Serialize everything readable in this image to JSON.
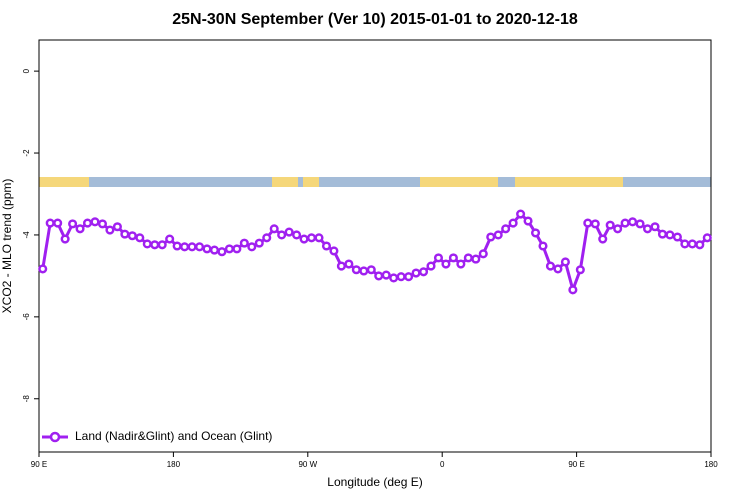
{
  "chart_data": {
    "type": "line",
    "title": "25N-30N September (Ver 10)   2015-01-01 to 2020-12-18",
    "x_label": "Longitude (deg E)",
    "y_label": "XCO2 - MLO trend (ppm)",
    "xlim": [
      90,
      540
    ],
    "ylim": [
      -9.3,
      0.76
    ],
    "xticks": [
      {
        "value": 90,
        "label": "90 E"
      },
      180,
      {
        "value": 270,
        "label": "90 W"
      },
      {
        "value": 360,
        "label": "0"
      },
      {
        "value": 450,
        "label": "90 E"
      },
      {
        "value": 540,
        "label": "180"
      }
    ],
    "yticks": [
      0,
      -2,
      -4,
      -6,
      -8
    ],
    "legend": "bottom-left",
    "series": [
      {
        "name": "Land (Nadir&Glint) and Ocean (Glint)",
        "color": "#a020f0",
        "x": [
          92.5,
          97.5,
          102.5,
          107.5,
          112.5,
          117.5,
          122.5,
          127.5,
          132.5,
          137.5,
          142.5,
          147.5,
          152.5,
          157.5,
          162.5,
          167.5,
          172.5,
          177.5,
          182.5,
          187.5,
          192.5,
          197.5,
          202.5,
          207.5,
          212.5,
          217.5,
          222.5,
          227.5,
          232.5,
          237.5,
          242.5,
          247.5,
          252.5,
          257.5,
          262.5,
          267.5,
          272.5,
          277.5,
          282.5,
          287.5,
          292.5,
          297.5,
          302.5,
          307.5,
          312.5,
          317.5,
          322.5,
          327.5,
          332.5,
          337.5,
          342.5,
          347.5,
          352.5,
          357.5,
          362.5,
          367.5,
          372.5,
          377.5,
          382.5,
          387.5,
          392.5,
          397.5,
          402.5,
          407.5,
          412.5,
          417.5,
          422.5,
          427.5,
          432.5,
          437.5,
          442.5,
          447.5,
          452.5,
          457.5,
          462.5,
          467.5,
          472.5,
          477.5,
          482.5,
          487.5,
          492.5,
          497.5,
          502.5,
          507.5,
          512.5,
          517.5,
          522.5,
          527.5,
          532.5,
          537.5
        ],
        "values": [
          -4.83,
          -3.71,
          -3.71,
          -4.1,
          -3.73,
          -3.85,
          -3.71,
          -3.68,
          -3.73,
          -3.88,
          -3.8,
          -3.98,
          -4.02,
          -4.07,
          -4.22,
          -4.24,
          -4.24,
          -4.1,
          -4.27,
          -4.29,
          -4.29,
          -4.29,
          -4.34,
          -4.37,
          -4.41,
          -4.34,
          -4.34,
          -4.2,
          -4.29,
          -4.2,
          -4.07,
          -3.85,
          -4.0,
          -3.93,
          -4.0,
          -4.1,
          -4.07,
          -4.07,
          -4.27,
          -4.39,
          -4.76,
          -4.71,
          -4.85,
          -4.88,
          -4.85,
          -5.0,
          -4.98,
          -5.05,
          -5.02,
          -5.02,
          -4.93,
          -4.9,
          -4.76,
          -4.56,
          -4.71,
          -4.56,
          -4.71,
          -4.56,
          -4.59,
          -4.46,
          -4.05,
          -4.0,
          -3.85,
          -3.71,
          -3.49,
          -3.66,
          -3.95,
          -4.27,
          -4.76,
          -4.83,
          -4.66,
          -5.34,
          -4.85,
          -3.71,
          -3.73,
          -4.1,
          -3.76,
          -3.85,
          -3.71,
          -3.68,
          -3.73,
          -3.85,
          -3.8,
          -3.98,
          -4.0,
          -4.05,
          -4.22,
          -4.22,
          -4.24,
          -4.07
        ]
      }
    ]
  }
}
